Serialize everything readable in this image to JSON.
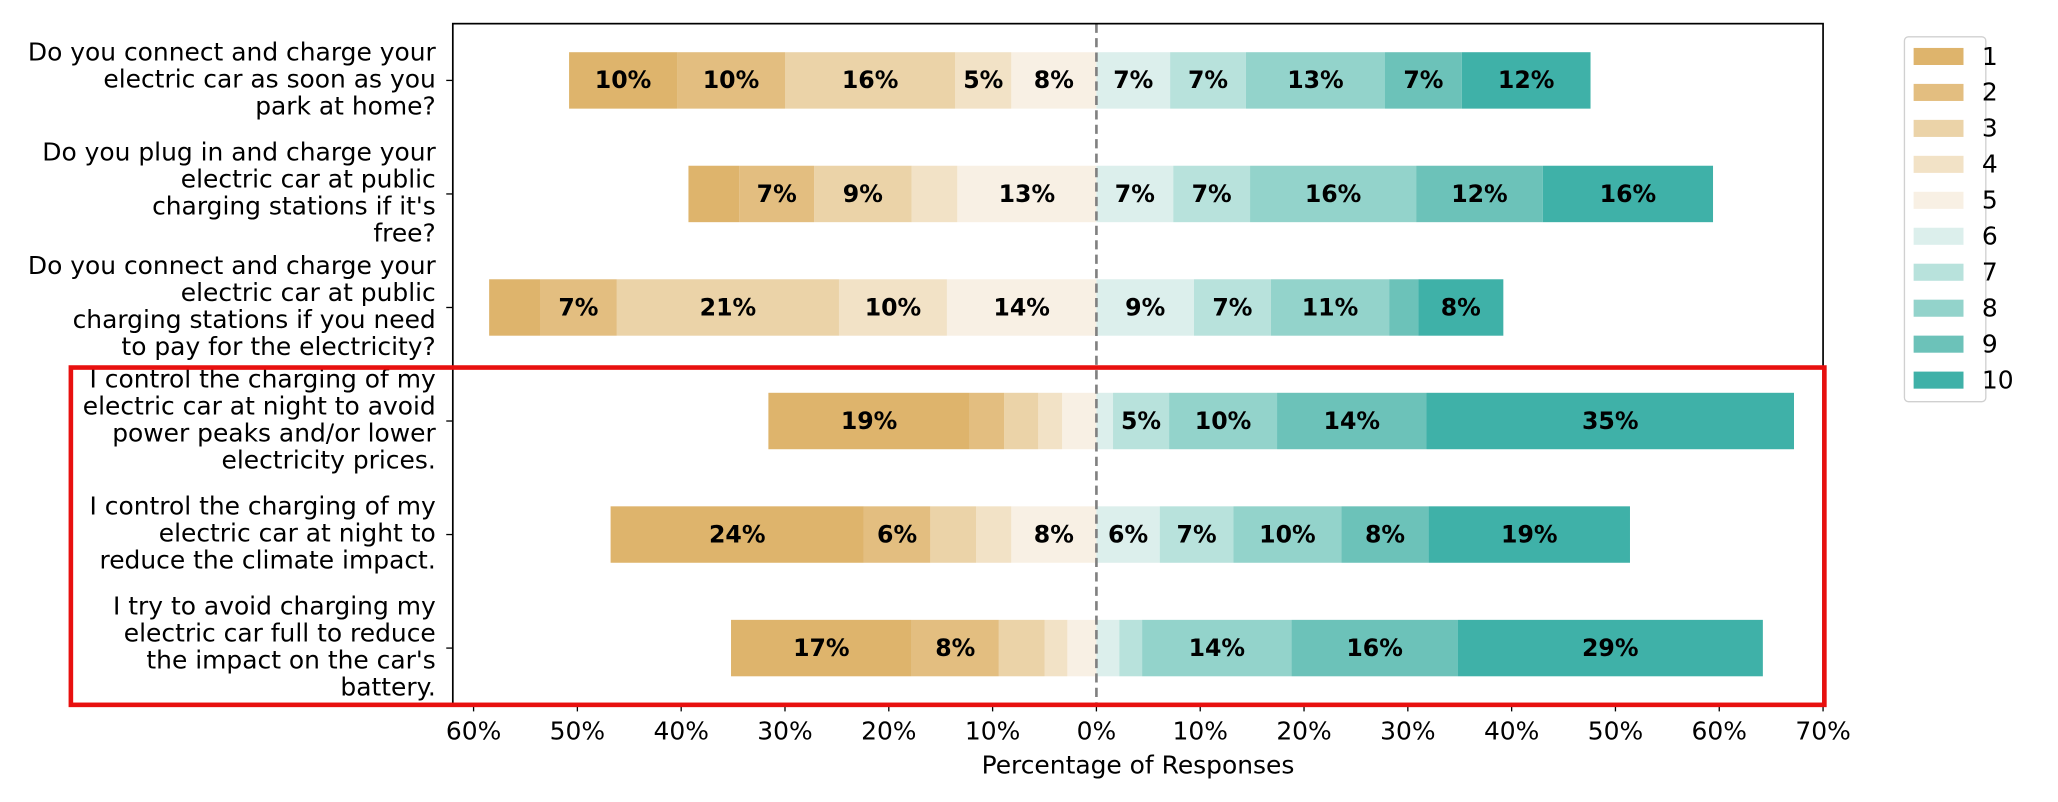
{
  "chart_data": {
    "type": "diverging_bar",
    "xlabel": "Percentage of Responses",
    "categories": [
      "Do you connect and charge your\nelectric car as soon as you\npark at home?",
      "Do you plug in and charge your\nelectric car at public\ncharging stations if it's\nfree?",
      "Do you connect and charge your\nelectric car at public\ncharging stations if you need\nto pay for the electricity?",
      "I control the charging of my\nelectric car at night to avoid\npower peaks and/or lower\nelectricity prices.",
      "I control the charging of my\nelectric car at night to\nreduce the climate impact.",
      "I try to avoid charging my\nelectric car full to reduce\nthe impact on the car's\nbattery."
    ],
    "series": [
      {
        "name": "1",
        "color": "#deb46c",
        "values": [
          10.4,
          4.9,
          4.9,
          19.4,
          24.4,
          17.4
        ],
        "value_labels": [
          "10%",
          null,
          null,
          "19%",
          "24%",
          "17%"
        ]
      },
      {
        "name": "2",
        "color": "#e3be80",
        "values": [
          10.4,
          7.2,
          7.4,
          3.3,
          6.4,
          8.4
        ],
        "value_labels": [
          "10%",
          "7%",
          "7%",
          null,
          "6%",
          "8%"
        ]
      },
      {
        "name": "3",
        "color": "#ebd3a8",
        "values": [
          16.4,
          9.4,
          21.4,
          3.3,
          4.4,
          4.4
        ],
        "value_labels": [
          "16%",
          "9%",
          "21%",
          null,
          null,
          null
        ]
      },
      {
        "name": "4",
        "color": "#f2e2c6",
        "values": [
          5.4,
          4.4,
          10.4,
          2.3,
          3.4,
          2.2
        ],
        "value_labels": [
          "5%",
          null,
          "10%",
          null,
          null,
          null
        ]
      },
      {
        "name": "5",
        "color": "#f8f0e4",
        "values": [
          8.2,
          13.4,
          14.4,
          3.3,
          8.2,
          2.8
        ],
        "value_labels": [
          "8%",
          "13%",
          "14%",
          null,
          "8%",
          null
        ]
      },
      {
        "name": "6",
        "color": "#dcefec",
        "values": [
          7.1,
          7.4,
          9.4,
          1.6,
          6.1,
          2.2
        ],
        "value_labels": [
          "7%",
          "7%",
          "9%",
          null,
          "6%",
          null
        ]
      },
      {
        "name": "7",
        "color": "#b8e2dc",
        "values": [
          7.3,
          7.4,
          7.4,
          5.4,
          7.1,
          2.2
        ],
        "value_labels": [
          "7%",
          "7%",
          "7%",
          "5%",
          "7%",
          null
        ]
      },
      {
        "name": "8",
        "color": "#93d3cb",
        "values": [
          13.4,
          16.0,
          11.4,
          10.4,
          10.4,
          14.4
        ],
        "value_labels": [
          "13%",
          "16%",
          "11%",
          "10%",
          "10%",
          "14%"
        ]
      },
      {
        "name": "9",
        "color": "#6cc2b9",
        "values": [
          7.4,
          12.2,
          2.8,
          14.4,
          8.4,
          16.0
        ],
        "value_labels": [
          "7%",
          "12%",
          null,
          "14%",
          "8%",
          "16%"
        ]
      },
      {
        "name": "10",
        "color": "#3fb1a8",
        "values": [
          12.4,
          16.4,
          8.2,
          35.4,
          19.4,
          29.4
        ],
        "value_labels": [
          "12%",
          "16%",
          "8%",
          "35%",
          "19%",
          "29%"
        ]
      }
    ],
    "xlim": [
      -62,
      70
    ],
    "xticks": [
      {
        "value": -60,
        "label": "60%"
      },
      {
        "value": -50,
        "label": "50%"
      },
      {
        "value": -40,
        "label": "40%"
      },
      {
        "value": -30,
        "label": "30%"
      },
      {
        "value": -20,
        "label": "20%"
      },
      {
        "value": -10,
        "label": "10%"
      },
      {
        "value": 0,
        "label": "0%"
      },
      {
        "value": 10,
        "label": "10%"
      },
      {
        "value": 20,
        "label": "20%"
      },
      {
        "value": 30,
        "label": "30%"
      },
      {
        "value": 40,
        "label": "40%"
      },
      {
        "value": 50,
        "label": "50%"
      },
      {
        "value": 60,
        "label": "60%"
      },
      {
        "value": 70,
        "label": "70%"
      }
    ]
  }
}
